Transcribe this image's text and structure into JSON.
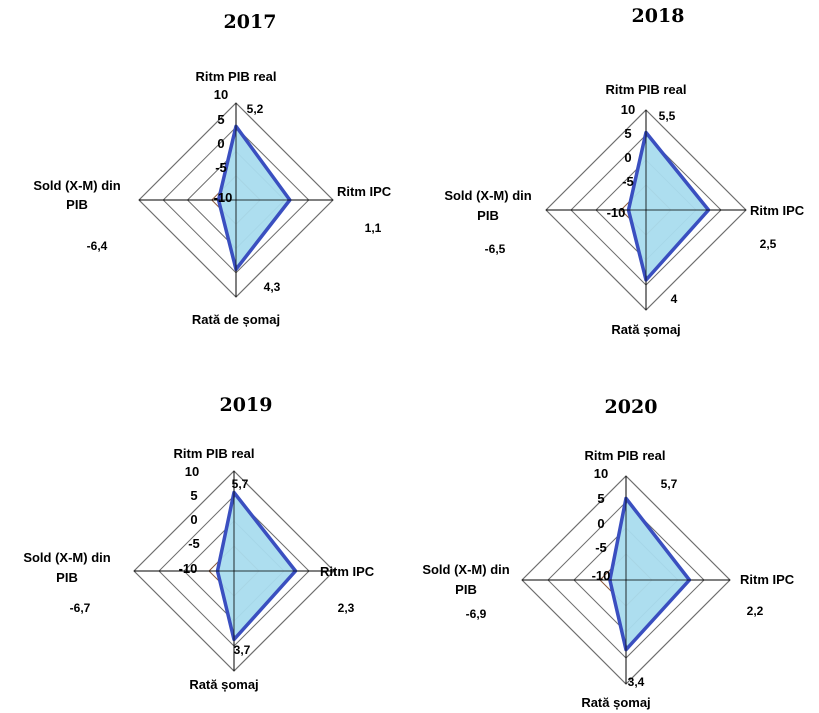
{
  "chart_data": [
    {
      "type": "radar",
      "title": "2017",
      "axes": [
        "Ritm PIB real",
        "Ritm IPC",
        "Rată de șomaj",
        "Sold (X-M) din PIB"
      ],
      "values": [
        5.2,
        1.1,
        4.3,
        -6.4
      ],
      "value_labels": [
        "5,2",
        "1,1",
        "4,3",
        "-6,4"
      ],
      "ticks": [
        "10",
        "5",
        "0",
        "-5",
        "-10"
      ],
      "range": [
        -10,
        10
      ]
    },
    {
      "type": "radar",
      "title": "2018",
      "axes": [
        "Ritm PIB real",
        "Ritm IPC",
        "Rată șomaj",
        "Sold (X-M) din PIB"
      ],
      "values": [
        5.5,
        2.5,
        4,
        -6.5
      ],
      "value_labels": [
        "5,5",
        "2,5",
        "4",
        "-6,5"
      ],
      "ticks": [
        "10",
        "5",
        "0",
        "-5",
        "-10"
      ],
      "range": [
        -10,
        10
      ]
    },
    {
      "type": "radar",
      "title": "2019",
      "axes": [
        "Ritm PIB real",
        "Ritm IPC",
        "Rată șomaj",
        "Sold (X-M) din PIB"
      ],
      "values": [
        5.7,
        2.3,
        3.7,
        -6.7
      ],
      "value_labels": [
        "5,7",
        "2,3",
        "3,7",
        "-6,7"
      ],
      "ticks": [
        "10",
        "5",
        "0",
        "-5",
        "-10"
      ],
      "range": [
        -10,
        10
      ]
    },
    {
      "type": "radar",
      "title": "2020",
      "axes": [
        "Ritm PIB real",
        "Ritm IPC",
        "Rată șomaj",
        "Sold (X-M) din PIB"
      ],
      "values": [
        5.7,
        2.2,
        3.4,
        -6.9
      ],
      "value_labels": [
        "5,7",
        "2,2",
        "3,4",
        "-6,9"
      ],
      "ticks": [
        "10",
        "5",
        "0",
        "-5",
        "-10"
      ],
      "range": [
        -10,
        10
      ]
    }
  ],
  "colors": {
    "series_line": "#3a4fc0",
    "series_fill": "#a9dcee",
    "grid": "#6e6e6e",
    "inner_grid": "#8b5a3c"
  }
}
